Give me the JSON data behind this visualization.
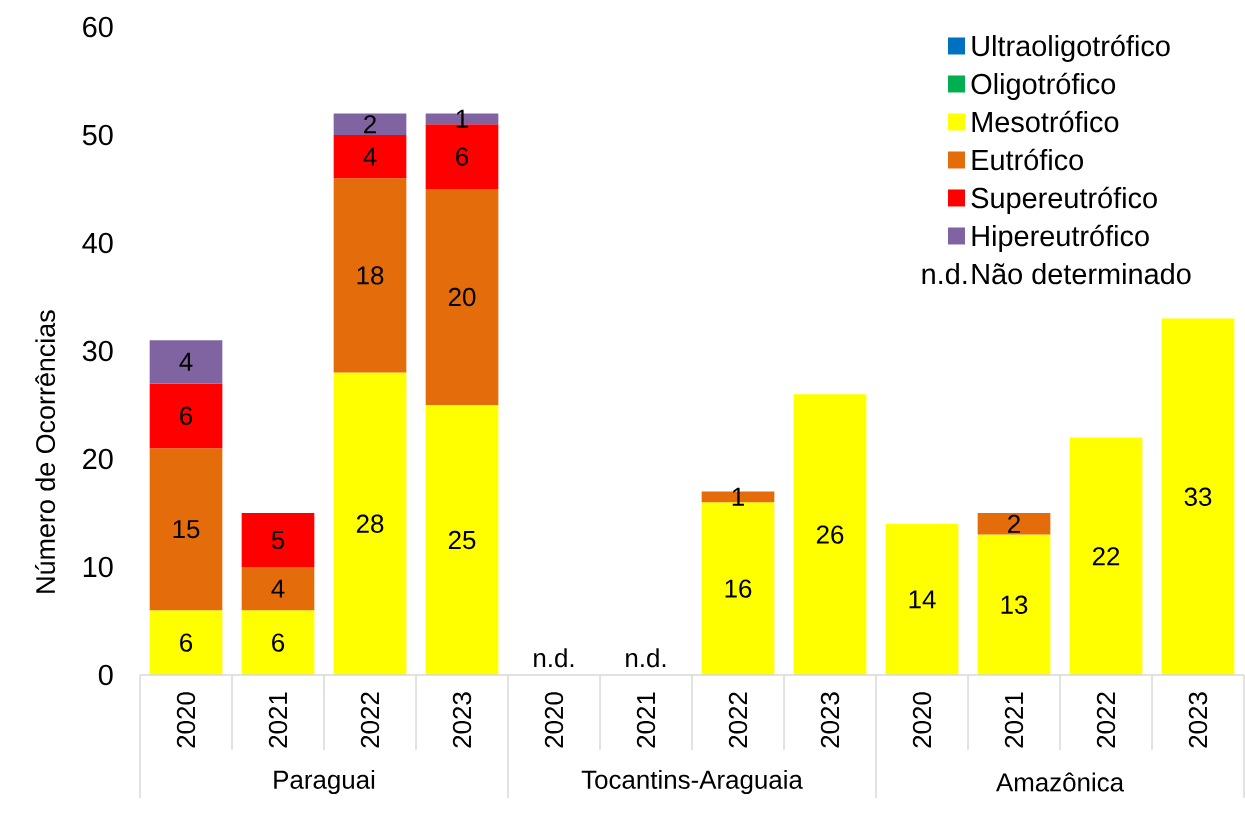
{
  "chart_data": {
    "type": "bar",
    "stacked": true,
    "ylabel": "Número de Ocorrências",
    "categories": [
      "2020",
      "2021",
      "2022",
      "2023",
      "2020",
      "2021",
      "2022",
      "2023",
      "2020",
      "2021",
      "2022",
      "2023"
    ],
    "series": [
      {
        "name": "Ultraoligotrófico",
        "color": "#0070c0",
        "values": [
          null,
          null,
          null,
          null,
          null,
          null,
          null,
          null,
          null,
          null,
          null,
          null
        ]
      },
      {
        "name": "Oligotrófico",
        "color": "#00b050",
        "values": [
          null,
          null,
          null,
          null,
          null,
          null,
          null,
          null,
          null,
          null,
          null,
          null
        ]
      },
      {
        "name": "Mesotrófico",
        "color": "#ffff00",
        "values": [
          6,
          6,
          28,
          25,
          null,
          null,
          16,
          26,
          14,
          13,
          22,
          33
        ]
      },
      {
        "name": "Eutrófico",
        "color": "#e46c0a",
        "values": [
          15,
          4,
          18,
          20,
          null,
          null,
          1,
          null,
          null,
          2,
          null,
          null
        ]
      },
      {
        "name": "Supereutrófico",
        "color": "#ff0000",
        "values": [
          6,
          5,
          4,
          6,
          null,
          null,
          null,
          null,
          null,
          null,
          null,
          null
        ]
      },
      {
        "name": "Hipereutrófico",
        "color": "#8064a2",
        "values": [
          4,
          null,
          2,
          1,
          null,
          null,
          null,
          null,
          null,
          null,
          null,
          null
        ]
      },
      {
        "name": "Não determinado",
        "values": [
          null,
          null,
          null,
          null,
          null,
          null,
          null,
          null,
          null,
          null,
          null,
          null
        ],
        "value_labels": [
          null,
          null,
          null,
          null,
          "n.d.",
          "n.d.",
          null,
          null,
          null,
          null,
          null,
          null
        ]
      }
    ],
    "ylim": [
      0,
      60
    ],
    "yticks": [
      0,
      10,
      20,
      30,
      40,
      50,
      60
    ],
    "data_labels": true,
    "legend": "top right",
    "annotations": [
      "Paraguai",
      "Tocantins-Araguaia",
      "Amazônica"
    ]
  }
}
